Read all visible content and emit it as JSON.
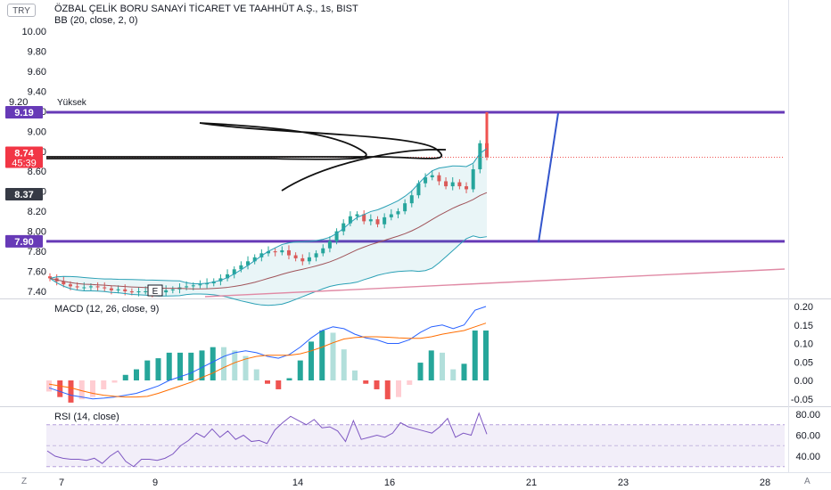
{
  "header": {
    "currency": "TRY",
    "symbol_line": "ÖZBAL ÇELİK BORU SANAYİ TİCARET VE TAAHHÜT A.Ş., 1s, BIST",
    "bb_line": "BB (20, close, 2, 0)"
  },
  "price_axis": {
    "ticks": [
      "10.00",
      "9.80",
      "9.60",
      "9.40",
      "9.20",
      "9.00",
      "8.80",
      "8.60",
      "8.40",
      "8.20",
      "8.00",
      "7.80",
      "7.60",
      "7.40"
    ],
    "labels": [
      {
        "text": "9.19",
        "color": "#673ab7",
        "level": 9.19
      },
      {
        "text": "8.74",
        "sub": "45:39",
        "color": "#f23645",
        "level": 8.74
      },
      {
        "text": "8.37",
        "color": "#363a45",
        "level": 8.37
      },
      {
        "text": "7.90",
        "color": "#673ab7",
        "level": 7.9
      }
    ],
    "high_marker": "Yüksek"
  },
  "time_axis": {
    "labels": [
      "7",
      "9",
      "14",
      "16",
      "21",
      "23",
      "28"
    ]
  },
  "macd": {
    "title": "MACD (12, 26, close, 9)",
    "ticks": [
      "0.20",
      "0.15",
      "0.10",
      "0.05",
      "0.00",
      "-0.05"
    ]
  },
  "rsi": {
    "title": "RSI (14, close)",
    "ticks": [
      "80.00",
      "60.00",
      "40.00"
    ]
  },
  "corners": {
    "left": "Z",
    "right": "A"
  },
  "event_marker": "E",
  "colors": {
    "up": "#26a69a",
    "down": "#ef5350",
    "level_line": "#673ab7",
    "bb_band": "#2aa0b5",
    "bb_basis": "#a0545a",
    "trendline": "#e08aa5",
    "projection": "#3355cc",
    "macd": "#2962ff",
    "signal": "#ff6d00",
    "rsi": "#7e57c2"
  },
  "chart_data": [
    {
      "type": "candlestick",
      "title": "ÖZBAL ÇELİK BORU SANAYİ TİCARET VE TAAHHÜT A.Ş., 1s, BIST",
      "ylim": [
        7.33,
        10.08
      ],
      "horizontal_levels": [
        9.19,
        7.9
      ],
      "last_price": 8.74,
      "values": [
        7.53,
        7.5,
        7.47,
        7.45,
        7.44,
        7.44,
        7.45,
        7.44,
        7.43,
        7.41,
        7.42,
        7.4,
        7.39,
        7.4,
        7.4,
        7.38,
        7.39,
        7.41,
        7.42,
        7.44,
        7.45,
        7.46,
        7.47,
        7.48,
        7.5,
        7.53,
        7.57,
        7.62,
        7.66,
        7.7,
        7.74,
        7.78,
        7.8,
        7.79,
        7.81,
        7.76,
        7.73,
        7.7,
        7.74,
        7.78,
        7.83,
        7.9,
        8.0,
        8.08,
        8.15,
        8.17,
        8.1,
        8.12,
        8.07,
        8.14,
        8.17,
        8.2,
        8.28,
        8.36,
        8.48,
        8.54,
        8.56,
        8.5,
        8.45,
        8.49,
        8.45,
        8.42,
        8.62,
        8.88,
        8.74
      ]
    },
    {
      "type": "line",
      "title": "MACD (12, 26, close, 9)",
      "ylim": [
        -0.07,
        0.22
      ],
      "series": [
        {
          "name": "MACD",
          "values": [
            -0.02,
            -0.03,
            -0.04,
            -0.045,
            -0.05,
            -0.048,
            -0.045,
            -0.04,
            -0.035,
            -0.025,
            -0.015,
            0.0,
            0.01,
            0.02,
            0.035,
            0.05,
            0.065,
            0.075,
            0.08,
            0.075,
            0.065,
            0.06,
            0.07,
            0.09,
            0.115,
            0.135,
            0.145,
            0.14,
            0.125,
            0.115,
            0.11,
            0.1,
            0.1,
            0.11,
            0.13,
            0.145,
            0.15,
            0.14,
            0.15,
            0.19,
            0.2
          ]
        },
        {
          "name": "Signal",
          "values": [
            -0.01,
            -0.015,
            -0.02,
            -0.028,
            -0.035,
            -0.04,
            -0.043,
            -0.045,
            -0.045,
            -0.043,
            -0.035,
            -0.025,
            -0.015,
            -0.005,
            0.008,
            0.02,
            0.035,
            0.048,
            0.058,
            0.065,
            0.068,
            0.068,
            0.068,
            0.072,
            0.08,
            0.09,
            0.102,
            0.112,
            0.116,
            0.118,
            0.118,
            0.117,
            0.115,
            0.114,
            0.114,
            0.118,
            0.125,
            0.13,
            0.135,
            0.145,
            0.155
          ]
        }
      ]
    },
    {
      "type": "line",
      "title": "RSI (14, close)",
      "ylim": [
        22,
        88
      ],
      "bands": [
        70,
        30
      ],
      "series": [
        {
          "name": "RSI",
          "values": [
            45,
            40,
            38,
            37,
            37,
            36,
            38,
            33,
            40,
            45,
            35,
            30,
            37,
            37,
            36,
            38,
            42,
            50,
            55,
            62,
            58,
            66,
            58,
            64,
            56,
            60,
            54,
            55,
            52,
            65,
            72,
            78,
            74,
            70,
            75,
            67,
            68,
            64,
            54,
            74,
            56,
            58,
            60,
            58,
            62,
            72,
            68,
            66,
            64,
            62,
            68,
            76,
            58,
            62,
            60,
            81,
            61
          ]
        }
      ]
    }
  ]
}
